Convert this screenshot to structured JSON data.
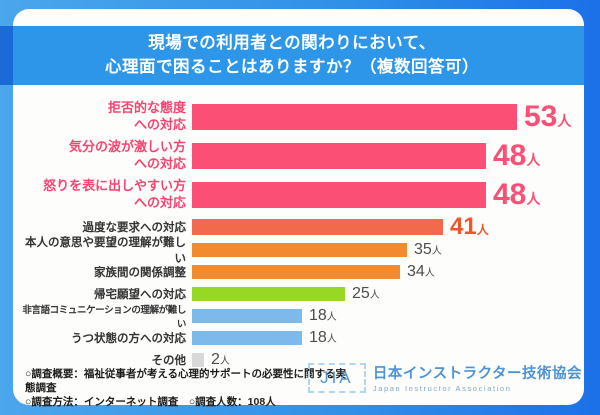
{
  "title": {
    "line1": "現場での利用者との関わりにおいて、",
    "line2": "心理面で困ることはありますか？（複数回答可）"
  },
  "colors": {
    "banner_blue": "#2E96E8",
    "banner_edge_blue": "#1A6BD8",
    "background_left": "#4BA6EC",
    "background_right": "#1C70E8",
    "pink": "#FB4F76",
    "coral": "#F26A4C",
    "orange": "#F28A2E",
    "green": "#97D824",
    "light_blue": "#7EB9EB",
    "gray": "#D8D8D8"
  },
  "chart_data": {
    "type": "bar",
    "orientation": "horizontal",
    "unit": "人",
    "max_value": 53,
    "rows": [
      {
        "label": "拒否的な態度\nへの対応",
        "value": 53,
        "bar_color": "#FB4F76",
        "label_color": "#F94370",
        "value_color": "#FB4F76",
        "tier": "large"
      },
      {
        "label": "気分の波が激しい方\nへの対応",
        "value": 48,
        "bar_color": "#FB4F76",
        "label_color": "#F94370",
        "value_color": "#FB4F76",
        "tier": "large"
      },
      {
        "label": "怒りを表に出しやすい方\nへの対応",
        "value": 48,
        "bar_color": "#FB4F76",
        "label_color": "#F94370",
        "value_color": "#FB4F76",
        "tier": "large"
      },
      {
        "label": "過度な要求への対応",
        "value": 41,
        "bar_color": "#F26A4C",
        "label_color": "#333333",
        "value_color": "#F2542E",
        "tier": "medium"
      },
      {
        "label": "本人の意思や要望の理解が難しい",
        "value": 35,
        "bar_color": "#F28A2E",
        "label_color": "#333333",
        "value_color": "#4D4D4D",
        "tier": "small"
      },
      {
        "label": "家族間の関係調整",
        "value": 34,
        "bar_color": "#F28A2E",
        "label_color": "#333333",
        "value_color": "#4D4D4D",
        "tier": "small"
      },
      {
        "label": "帰宅願望への対応",
        "value": 25,
        "bar_color": "#97D824",
        "label_color": "#333333",
        "value_color": "#4D4D4D",
        "tier": "small"
      },
      {
        "label": "非言語コミュニケーションの理解が難しい",
        "value": 18,
        "bar_color": "#7EB9EB",
        "label_color": "#333333",
        "value_color": "#4D4D4D",
        "tier": "small"
      },
      {
        "label": "うつ状態の方への対応",
        "value": 18,
        "bar_color": "#7EB9EB",
        "label_color": "#333333",
        "value_color": "#4D4D4D",
        "tier": "small"
      },
      {
        "label": "その他",
        "value": 2,
        "bar_color": "#D8D8D8",
        "label_color": "#333333",
        "value_color": "#4D4D4D",
        "tier": "small"
      }
    ]
  },
  "footer": {
    "line1": "○調査概要：福祉従事者が考える心理的サポートの必要性に関する実態調査",
    "line2": "○調査方法：インターネット調査　○調査人数：108人",
    "logo": {
      "abbr": "JIA",
      "name_jp": "日本インストラクター技術協会",
      "name_en": "Japan Instructor Association"
    }
  }
}
